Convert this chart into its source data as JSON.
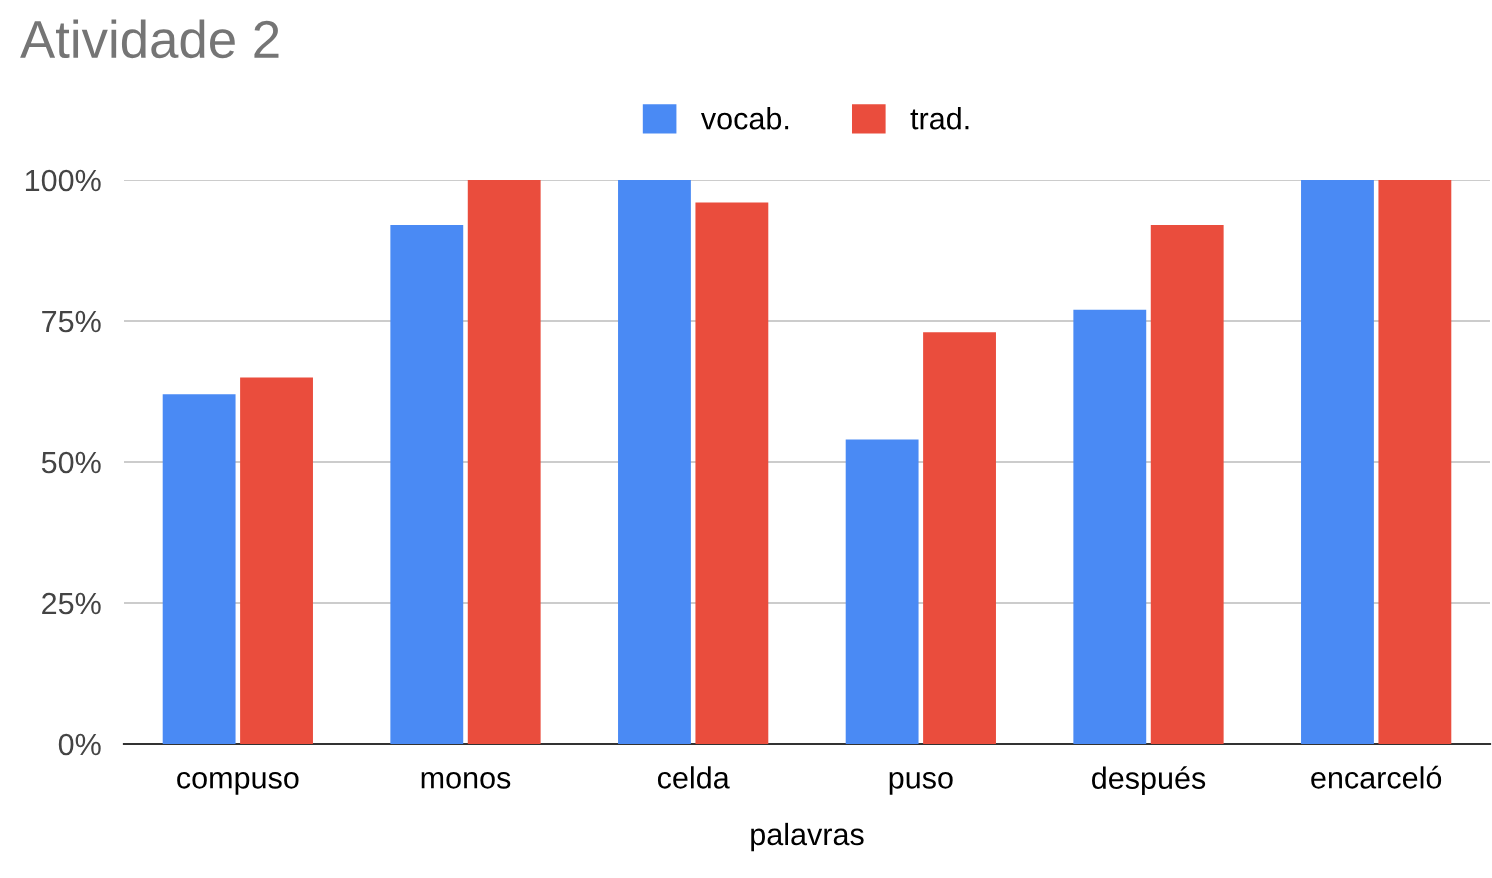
{
  "chart_data": {
    "type": "bar",
    "title": "Atividade 2",
    "xlabel": "palavras",
    "categories": [
      "compuso",
      "monos",
      "celda",
      "puso",
      "después",
      "encarceló"
    ],
    "series": [
      {
        "name": "vocab.",
        "color": "#4a8af4",
        "values": [
          62,
          92,
          100,
          54,
          77,
          100
        ]
      },
      {
        "name": "trad.",
        "color": "#ea4d3d",
        "values": [
          65,
          100,
          96,
          73,
          92,
          100
        ]
      }
    ],
    "ylim": [
      0,
      100
    ],
    "yticks": [
      {
        "value": 0,
        "label": "0%"
      },
      {
        "value": 25,
        "label": "25%"
      },
      {
        "value": 50,
        "label": "50%"
      },
      {
        "value": 75,
        "label": "75%"
      },
      {
        "value": 100,
        "label": "100%"
      }
    ],
    "grid": "y",
    "legend": "top"
  }
}
